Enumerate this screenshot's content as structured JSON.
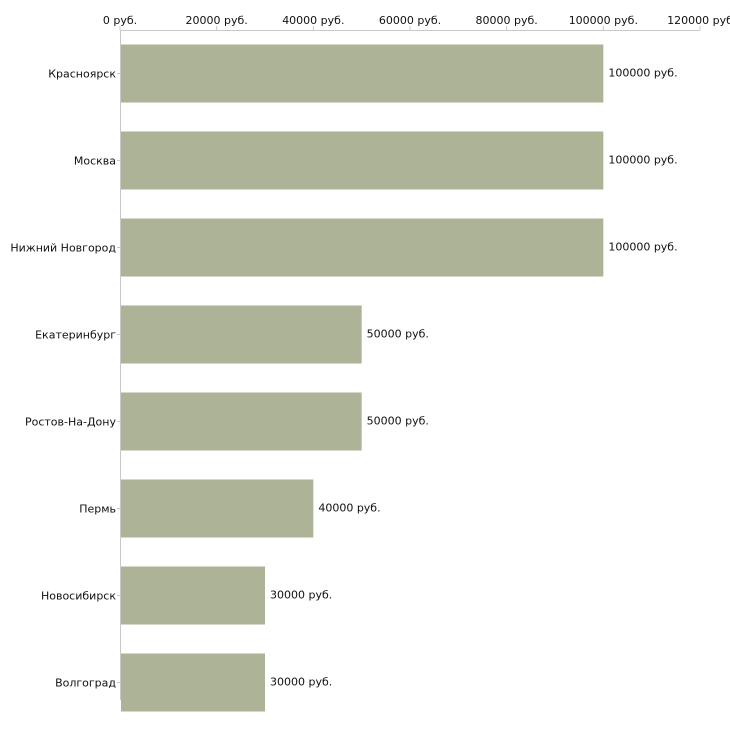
{
  "chart_data": {
    "type": "bar",
    "orientation": "horizontal",
    "title": "",
    "xlabel": "",
    "ylabel": "",
    "xlim": [
      0,
      120000
    ],
    "grid": false,
    "legend": "none",
    "bar_color": "#adb396",
    "axis_color": "#c8c8c8",
    "ticks": [
      "0 руб.",
      "20000 руб.",
      "40000 руб.",
      "60000 руб.",
      "80000 руб.",
      "100000 руб.",
      "120000 руб"
    ],
    "tick_values": [
      0,
      20000,
      40000,
      60000,
      80000,
      100000,
      120000
    ],
    "categories": [
      "Красноярск",
      "Москва",
      "Нижний Новгород",
      "Екатеринбург",
      "Ростов-На-Дону",
      "Пермь",
      "Новосибирск",
      "Волгоград"
    ],
    "values": [
      100000,
      100000,
      100000,
      50000,
      50000,
      40000,
      30000,
      30000
    ],
    "value_labels": [
      "100000 руб.",
      "100000 руб.",
      "100000 руб.",
      "50000 руб.",
      "50000 руб.",
      "40000 руб.",
      "30000 руб.",
      "30000 руб."
    ]
  }
}
